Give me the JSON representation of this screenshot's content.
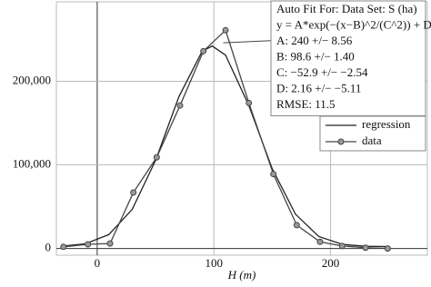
{
  "chart_data": {
    "type": "line",
    "xlabel": "H (m)",
    "xlim": [
      -35,
      283
    ],
    "xticks": [
      0,
      100,
      200
    ],
    "ylim": [
      -8000,
      295000
    ],
    "yticks": [
      0,
      {
        "value": 100000,
        "label": "100,000"
      },
      {
        "value": 200000,
        "label": "200,000"
      }
    ],
    "grid": true,
    "legend": "right",
    "annotation": [
      "Auto Fit For: Data Set: S (ha)",
      "y = A*exp(−(x−B)^2/(C^2)) + D",
      "A: 240 +/− 8.56",
      "B: 98.6 +/− 1.40",
      "C: −52.9 +/− −2.54",
      "D: 2.16 +/− −5.11",
      "RMSE: 11.5"
    ],
    "series": [
      {
        "name": "regression",
        "color": "#222222",
        "marker": false,
        "x": [
          -30,
          -10,
          10,
          30,
          50,
          70,
          90,
          98.6,
          110,
          130,
          150,
          170,
          190,
          210,
          230,
          250
        ],
        "values": [
          2800,
          5700,
          16680,
          46800,
          105360,
          181440,
          235920,
          242160,
          231290,
          170880,
          95520,
          40970,
          14280,
          5000,
          2660,
          2230
        ]
      },
      {
        "name": "data",
        "color": "#444444",
        "marker": true,
        "x": [
          -29,
          -8,
          11,
          31,
          51,
          71,
          91,
          110,
          130,
          151,
          171,
          191,
          210,
          230,
          249
        ],
        "values": [
          2000,
          5000,
          6000,
          67000,
          109000,
          171000,
          236000,
          261000,
          174000,
          89000,
          28000,
          8000,
          3000,
          1000,
          0
        ]
      }
    ]
  }
}
